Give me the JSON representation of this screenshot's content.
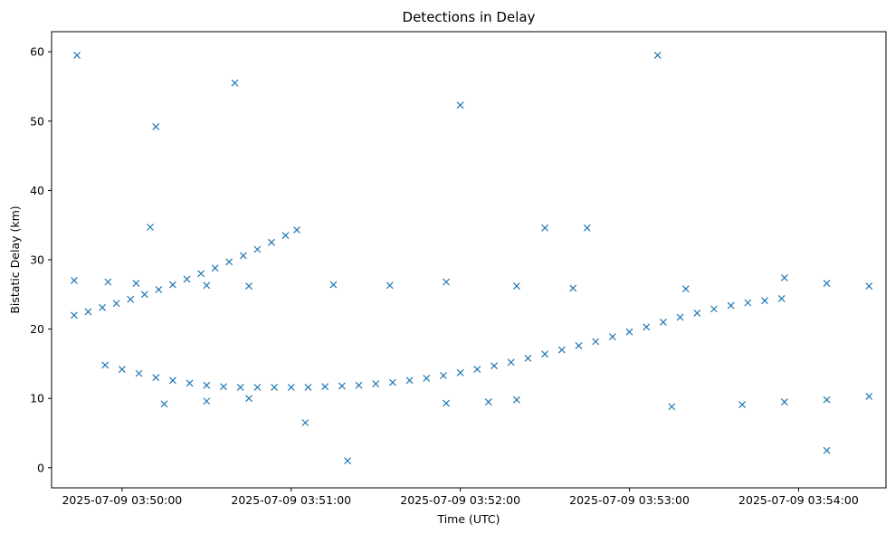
{
  "chart_data": {
    "type": "scatter",
    "title": "Detections in Delay",
    "xlabel": "Time (UTC)",
    "ylabel": "Bistatic Delay (km)",
    "x_ticks": [
      "2025-07-09 03:50:00",
      "2025-07-09 03:51:00",
      "2025-07-09 03:52:00",
      "2025-07-09 03:53:00",
      "2025-07-09 03:54:00"
    ],
    "y_ticks": [
      0,
      10,
      20,
      30,
      40,
      50,
      60
    ],
    "xlim": [
      "2025-07-09 03:49:35",
      "2025-07-09 03:54:31"
    ],
    "ylim": [
      -2.9,
      62.9
    ],
    "marker": "x",
    "color": "#1f77b4",
    "grid": false,
    "series": [
      {
        "points": [
          [
            "2025-07-09 03:49:43",
            22.0
          ],
          [
            "2025-07-09 03:49:48",
            22.5
          ],
          [
            "2025-07-09 03:49:53",
            23.1
          ],
          [
            "2025-07-09 03:49:58",
            23.7
          ],
          [
            "2025-07-09 03:50:03",
            24.3
          ],
          [
            "2025-07-09 03:50:08",
            25.0
          ],
          [
            "2025-07-09 03:50:13",
            25.7
          ],
          [
            "2025-07-09 03:50:18",
            26.4
          ],
          [
            "2025-07-09 03:50:23",
            27.2
          ],
          [
            "2025-07-09 03:50:28",
            28.0
          ],
          [
            "2025-07-09 03:50:33",
            28.8
          ],
          [
            "2025-07-09 03:50:38",
            29.7
          ],
          [
            "2025-07-09 03:50:43",
            30.6
          ],
          [
            "2025-07-09 03:50:48",
            31.5
          ],
          [
            "2025-07-09 03:50:53",
            32.5
          ],
          [
            "2025-07-09 03:50:58",
            33.5
          ],
          [
            "2025-07-09 03:51:02",
            34.3
          ],
          [
            "2025-07-09 03:49:54",
            14.8
          ],
          [
            "2025-07-09 03:50:00",
            14.2
          ],
          [
            "2025-07-09 03:50:06",
            13.6
          ],
          [
            "2025-07-09 03:50:12",
            13.0
          ],
          [
            "2025-07-09 03:50:18",
            12.6
          ],
          [
            "2025-07-09 03:50:24",
            12.2
          ],
          [
            "2025-07-09 03:50:30",
            11.9
          ],
          [
            "2025-07-09 03:50:36",
            11.7
          ],
          [
            "2025-07-09 03:50:42",
            11.6
          ],
          [
            "2025-07-09 03:50:48",
            11.6
          ],
          [
            "2025-07-09 03:50:54",
            11.6
          ],
          [
            "2025-07-09 03:51:00",
            11.6
          ],
          [
            "2025-07-09 03:51:06",
            11.6
          ],
          [
            "2025-07-09 03:51:12",
            11.7
          ],
          [
            "2025-07-09 03:51:18",
            11.8
          ],
          [
            "2025-07-09 03:51:24",
            11.9
          ],
          [
            "2025-07-09 03:51:30",
            12.1
          ],
          [
            "2025-07-09 03:51:36",
            12.3
          ],
          [
            "2025-07-09 03:51:42",
            12.6
          ],
          [
            "2025-07-09 03:51:48",
            12.9
          ],
          [
            "2025-07-09 03:51:54",
            13.3
          ],
          [
            "2025-07-09 03:52:00",
            13.7
          ],
          [
            "2025-07-09 03:52:06",
            14.2
          ],
          [
            "2025-07-09 03:52:12",
            14.7
          ],
          [
            "2025-07-09 03:52:18",
            15.2
          ],
          [
            "2025-07-09 03:52:24",
            15.8
          ],
          [
            "2025-07-09 03:52:30",
            16.4
          ],
          [
            "2025-07-09 03:52:36",
            17.0
          ],
          [
            "2025-07-09 03:52:42",
            17.6
          ],
          [
            "2025-07-09 03:52:48",
            18.2
          ],
          [
            "2025-07-09 03:52:54",
            18.9
          ],
          [
            "2025-07-09 03:53:00",
            19.6
          ],
          [
            "2025-07-09 03:53:06",
            20.3
          ],
          [
            "2025-07-09 03:53:12",
            21.0
          ],
          [
            "2025-07-09 03:53:18",
            21.7
          ],
          [
            "2025-07-09 03:53:24",
            22.3
          ],
          [
            "2025-07-09 03:53:30",
            22.9
          ],
          [
            "2025-07-09 03:53:36",
            23.4
          ],
          [
            "2025-07-09 03:53:42",
            23.8
          ],
          [
            "2025-07-09 03:53:48",
            24.1
          ],
          [
            "2025-07-09 03:53:54",
            24.4
          ],
          [
            "2025-07-09 03:49:43",
            27.0
          ],
          [
            "2025-07-09 03:49:55",
            26.8
          ],
          [
            "2025-07-09 03:50:05",
            26.6
          ],
          [
            "2025-07-09 03:50:30",
            26.3
          ],
          [
            "2025-07-09 03:50:45",
            26.2
          ],
          [
            "2025-07-09 03:51:15",
            26.4
          ],
          [
            "2025-07-09 03:51:35",
            26.3
          ],
          [
            "2025-07-09 03:51:55",
            26.8
          ],
          [
            "2025-07-09 03:52:20",
            26.2
          ],
          [
            "2025-07-09 03:52:40",
            25.9
          ],
          [
            "2025-07-09 03:53:20",
            25.8
          ],
          [
            "2025-07-09 03:53:55",
            27.4
          ],
          [
            "2025-07-09 03:54:10",
            26.6
          ],
          [
            "2025-07-09 03:54:25",
            26.2
          ],
          [
            "2025-07-09 03:50:15",
            9.2
          ],
          [
            "2025-07-09 03:50:30",
            9.6
          ],
          [
            "2025-07-09 03:50:45",
            10.0
          ],
          [
            "2025-07-09 03:51:55",
            9.3
          ],
          [
            "2025-07-09 03:52:10",
            9.5
          ],
          [
            "2025-07-09 03:52:20",
            9.8
          ],
          [
            "2025-07-09 03:53:15",
            8.8
          ],
          [
            "2025-07-09 03:53:40",
            9.1
          ],
          [
            "2025-07-09 03:53:55",
            9.5
          ],
          [
            "2025-07-09 03:54:10",
            9.8
          ],
          [
            "2025-07-09 03:54:25",
            10.3
          ],
          [
            "2025-07-09 03:50:10",
            34.7
          ],
          [
            "2025-07-09 03:52:30",
            34.6
          ],
          [
            "2025-07-09 03:52:45",
            34.6
          ],
          [
            "2025-07-09 03:49:44",
            59.5
          ],
          [
            "2025-07-09 03:50:12",
            49.2
          ],
          [
            "2025-07-09 03:51:20",
            1.0
          ],
          [
            "2025-07-09 03:53:10",
            59.5
          ],
          [
            "2025-07-09 03:54:10",
            2.5
          ],
          [
            "2025-07-09 03:52:00",
            52.3
          ],
          [
            "2025-07-09 03:50:40",
            55.5
          ],
          [
            "2025-07-09 03:51:05",
            6.5
          ]
        ]
      }
    ]
  }
}
